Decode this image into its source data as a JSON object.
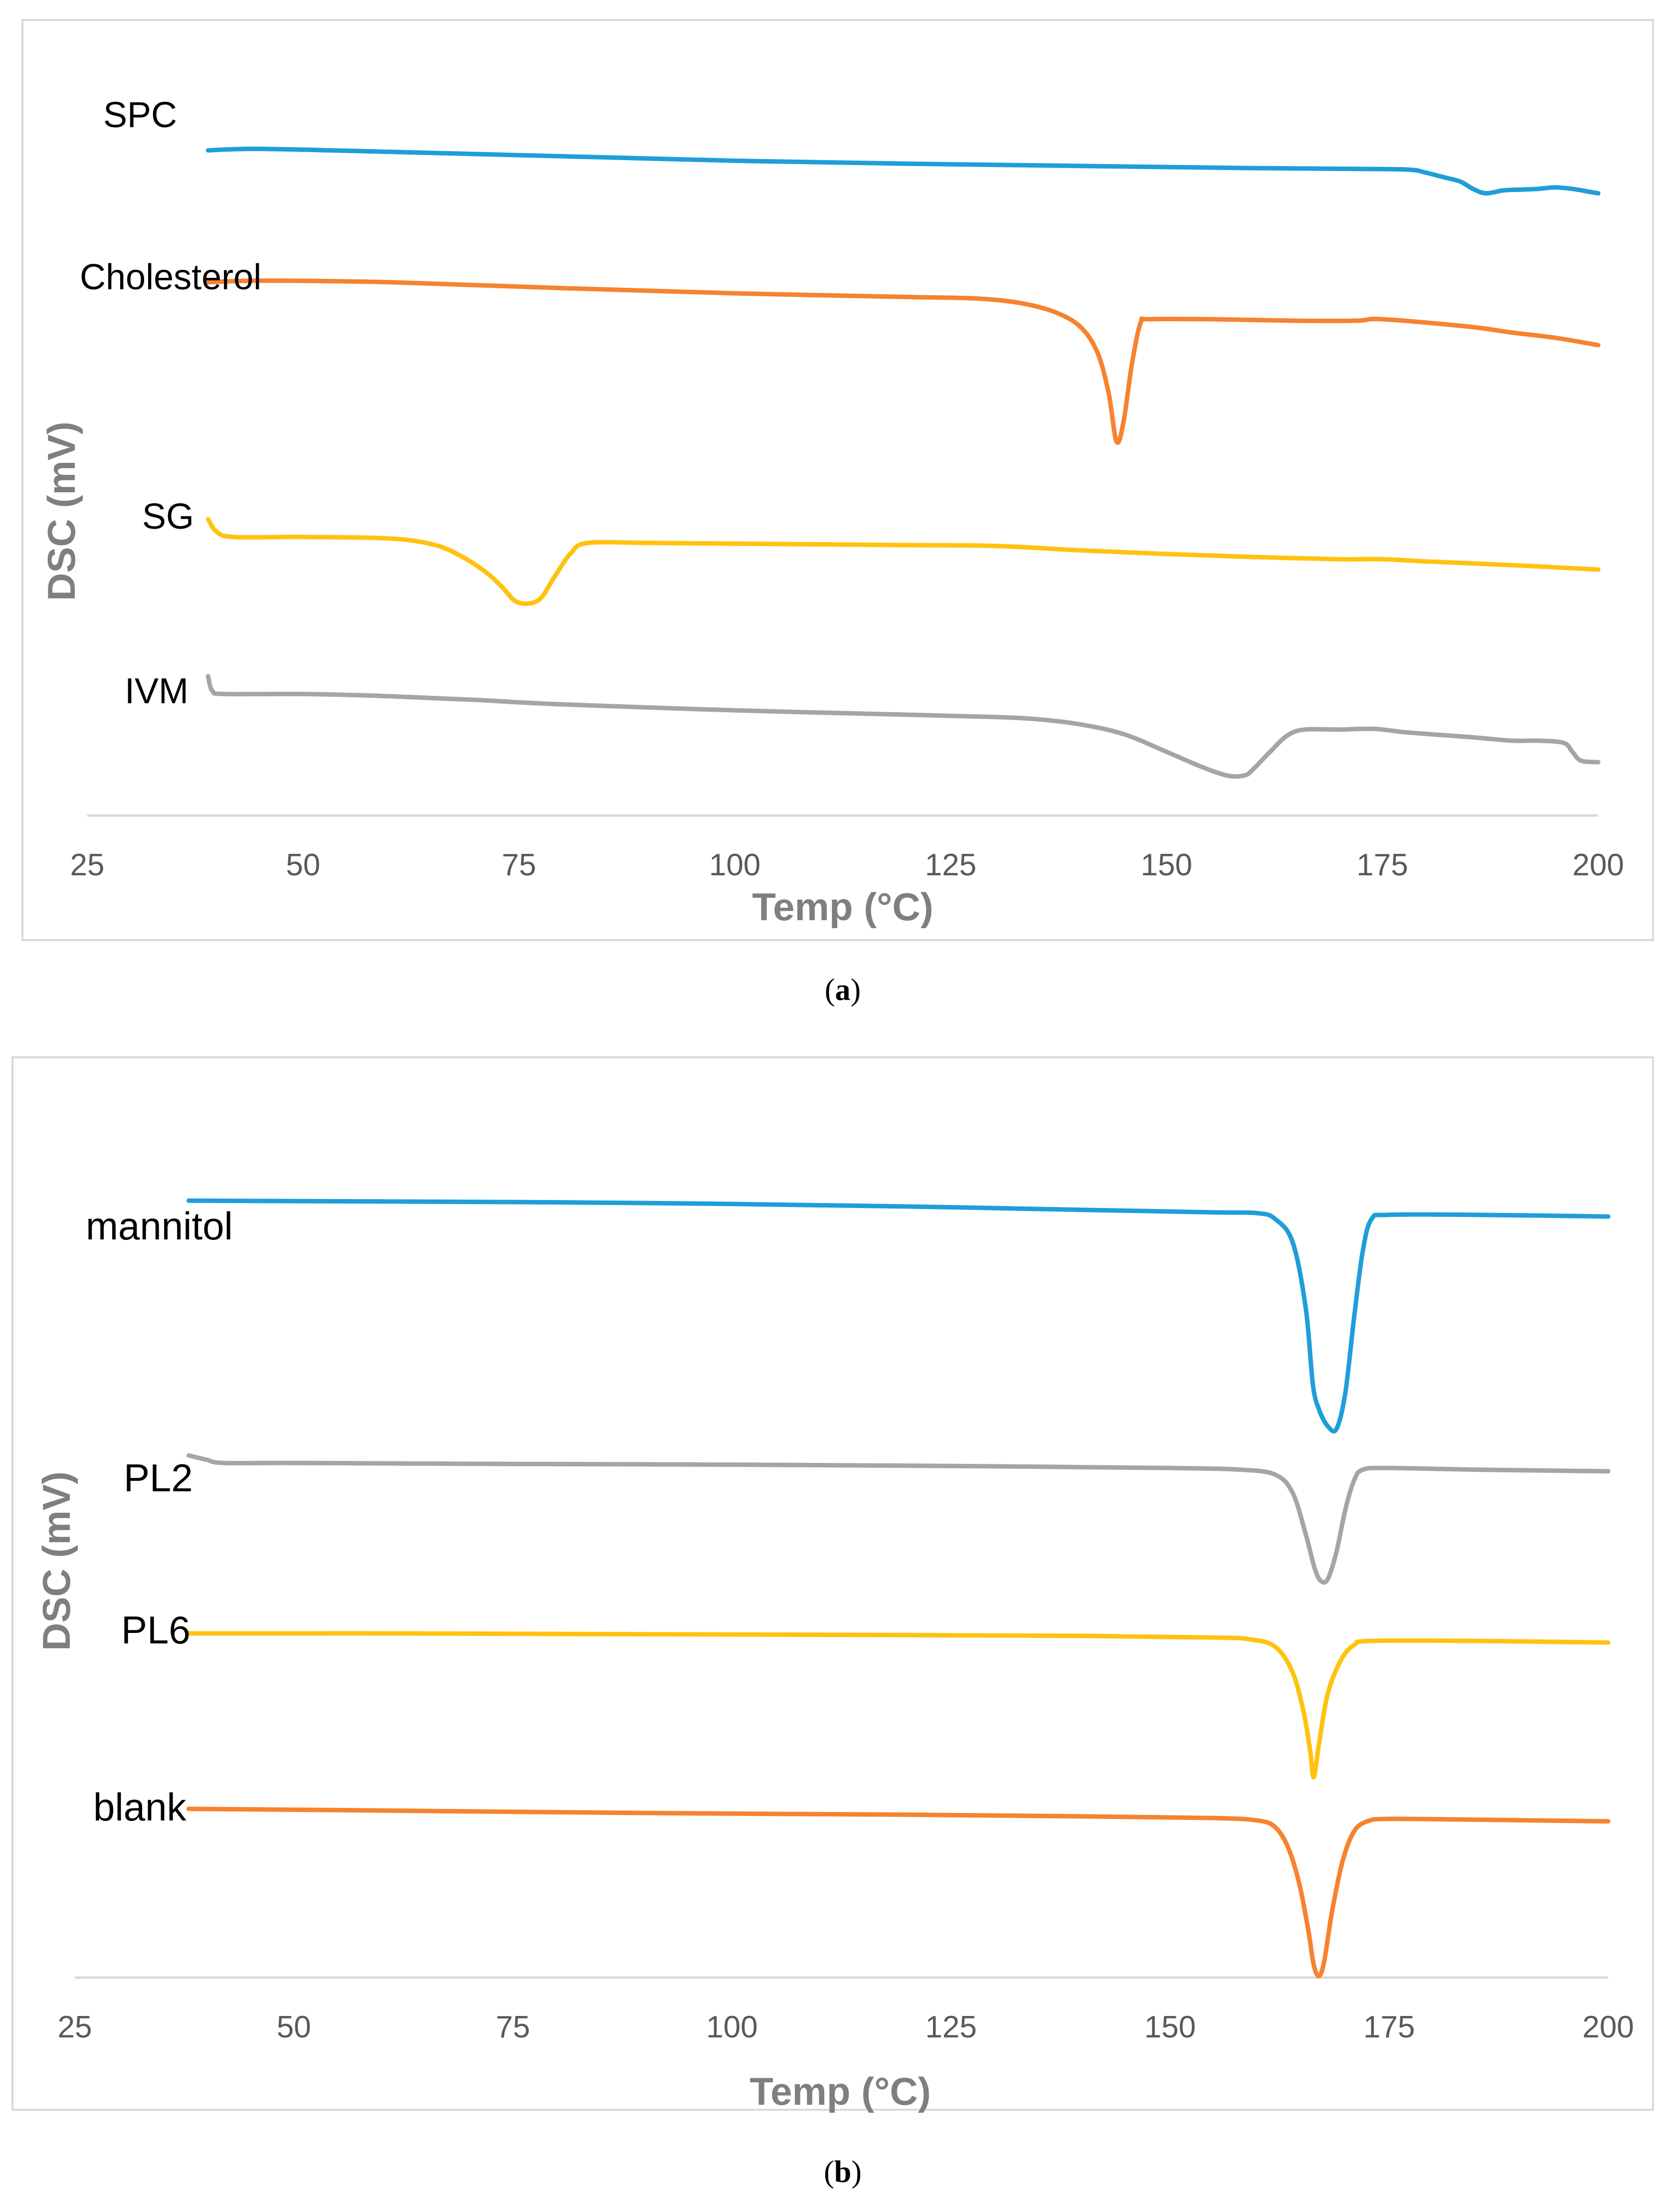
{
  "chart_data": [
    {
      "type": "line",
      "panel": "a",
      "caption": "(a)",
      "caption_letter": "a",
      "xlabel": "Temp (°C)",
      "ylabel": "DSC (mV)",
      "xlim": [
        25,
        200
      ],
      "ylim": [
        0,
        100
      ],
      "xticks": [
        "25",
        "50",
        "75",
        "100",
        "125",
        "150",
        "175",
        "200"
      ],
      "xtick_values": [
        25,
        50,
        75,
        100,
        125,
        150,
        175,
        200
      ],
      "colors": {
        "blue": "#1F9ED8",
        "orange": "#F7822F",
        "yellow": "#FFC20E",
        "gray": "#A5A5A5"
      },
      "series": [
        {
          "name": "SPC",
          "label": "SPC",
          "color": "#1F9ED8",
          "points": [
            [
              39,
              89.8
            ],
            [
              45,
              90
            ],
            [
              60,
              89.6
            ],
            [
              80,
              89
            ],
            [
              100,
              88.4
            ],
            [
              120,
              88
            ],
            [
              140,
              87.7
            ],
            [
              160,
              87.4
            ],
            [
              172,
              87.3
            ],
            [
              178,
              87.2
            ],
            [
              180,
              86.8
            ],
            [
              182,
              86.2
            ],
            [
              184,
              85.6
            ],
            [
              185.5,
              84.6
            ],
            [
              187,
              84
            ],
            [
              189,
              84.4
            ],
            [
              191,
              84.5
            ],
            [
              193,
              84.6
            ],
            [
              195,
              84.8
            ],
            [
              197,
              84.6
            ],
            [
              199,
              84.2
            ],
            [
              200,
              84
            ]
          ]
        },
        {
          "name": "Cholesterol",
          "label": "Cholesterol",
          "color": "#F7822F",
          "points": [
            [
              39,
              72
            ],
            [
              45,
              72.2
            ],
            [
              60,
              72
            ],
            [
              80,
              71.2
            ],
            [
              100,
              70.5
            ],
            [
              120,
              70
            ],
            [
              128,
              69.8
            ],
            [
              133,
              69.2
            ],
            [
              137,
              68
            ],
            [
              140,
              66
            ],
            [
              142,
              62.5
            ],
            [
              143.3,
              57
            ],
            [
              144.2,
              50.5
            ],
            [
              145,
              53
            ],
            [
              146,
              61
            ],
            [
              147,
              66.5
            ],
            [
              148,
              67
            ],
            [
              155,
              67
            ],
            [
              165,
              66.8
            ],
            [
              172,
              66.8
            ],
            [
              175,
              67
            ],
            [
              185,
              66
            ],
            [
              190,
              65.2
            ],
            [
              195,
              64.5
            ],
            [
              200,
              63.5
            ]
          ]
        },
        {
          "name": "SG",
          "label": "SG",
          "color": "#FFC20E",
          "points": [
            [
              39,
              40
            ],
            [
              40,
              38.3
            ],
            [
              42,
              37.6
            ],
            [
              50,
              37.6
            ],
            [
              60,
              37.4
            ],
            [
              65,
              36.6
            ],
            [
              68,
              35.2
            ],
            [
              71,
              33
            ],
            [
              73,
              30.9
            ],
            [
              74.5,
              29
            ],
            [
              76,
              28.6
            ],
            [
              77.5,
              29.3
            ],
            [
              79,
              32
            ],
            [
              81,
              35.4
            ],
            [
              83,
              36.8
            ],
            [
              90,
              36.8
            ],
            [
              100,
              36.7
            ],
            [
              120,
              36.5
            ],
            [
              130,
              36.4
            ],
            [
              140,
              35.8
            ],
            [
              150,
              35.3
            ],
            [
              160,
              34.9
            ],
            [
              170,
              34.6
            ],
            [
              175,
              34.6
            ],
            [
              180,
              34.3
            ],
            [
              190,
              33.8
            ],
            [
              200,
              33.2
            ]
          ]
        },
        {
          "name": "IVM",
          "label": "IVM",
          "color": "#A5A5A5",
          "points": [
            [
              39,
              18.8
            ],
            [
              39.5,
              16.8
            ],
            [
              41,
              16.4
            ],
            [
              50,
              16.4
            ],
            [
              60,
              16.1
            ],
            [
              70,
              15.6
            ],
            [
              80,
              15
            ],
            [
              100,
              14.2
            ],
            [
              120,
              13.6
            ],
            [
              130,
              13.3
            ],
            [
              135,
              13
            ],
            [
              140,
              12.3
            ],
            [
              145,
              11
            ],
            [
              150,
              8.6
            ],
            [
              154,
              6.6
            ],
            [
              157,
              5.4
            ],
            [
              159,
              5.4
            ],
            [
              160,
              6.2
            ],
            [
              162,
              8.6
            ],
            [
              164,
              10.8
            ],
            [
              166,
              11.6
            ],
            [
              170,
              11.6
            ],
            [
              174,
              11.7
            ],
            [
              178,
              11.2
            ],
            [
              185,
              10.6
            ],
            [
              190,
              10.1
            ],
            [
              193,
              10.1
            ],
            [
              196,
              9.8
            ],
            [
              197,
              8.6
            ],
            [
              198,
              7.4
            ],
            [
              200,
              7.2
            ]
          ]
        }
      ]
    },
    {
      "type": "line",
      "panel": "b",
      "caption": "(b)",
      "caption_letter": "b",
      "xlabel": "Temp (°C)",
      "ylabel": "DSC (mV)",
      "xlim": [
        25,
        200
      ],
      "ylim": [
        0,
        100
      ],
      "xticks": [
        "25",
        "50",
        "75",
        "100",
        "125",
        "150",
        "175",
        "200"
      ],
      "xtick_values": [
        25,
        50,
        75,
        100,
        125,
        150,
        175,
        200
      ],
      "colors": {
        "blue": "#1F9ED8",
        "orange": "#F7822F",
        "yellow": "#FFC20E",
        "gray": "#A5A5A5"
      },
      "series": [
        {
          "name": "mannitol",
          "label": "mannitol",
          "color": "#1F9ED8",
          "points": [
            [
              38,
              93
            ],
            [
              60,
              92.9
            ],
            [
              80,
              92.8
            ],
            [
              100,
              92.6
            ],
            [
              120,
              92.3
            ],
            [
              140,
              91.9
            ],
            [
              155,
              91.6
            ],
            [
              160,
              91.5
            ],
            [
              162,
              90.8
            ],
            [
              164,
              88
            ],
            [
              165.5,
              80
            ],
            [
              166.3,
              71
            ],
            [
              167,
              68
            ],
            [
              168,
              66
            ],
            [
              169,
              65.7
            ],
            [
              170,
              70
            ],
            [
              171,
              79
            ],
            [
              172,
              87
            ],
            [
              173,
              90.8
            ],
            [
              175,
              91.3
            ],
            [
              185,
              91.3
            ],
            [
              200,
              91.1
            ]
          ]
        },
        {
          "name": "PL2",
          "label": "PL2",
          "color": "#A5A5A5",
          "points": [
            [
              38,
              62.5
            ],
            [
              40,
              62
            ],
            [
              42,
              61.6
            ],
            [
              50,
              61.6
            ],
            [
              70,
              61.5
            ],
            [
              100,
              61.4
            ],
            [
              130,
              61.2
            ],
            [
              150,
              61
            ],
            [
              158,
              60.8
            ],
            [
              162,
              60.2
            ],
            [
              164,
              58
            ],
            [
              165.5,
              53
            ],
            [
              166.5,
              49
            ],
            [
              167.2,
              47.5
            ],
            [
              168,
              47.7
            ],
            [
              169,
              51
            ],
            [
              170,
              56
            ],
            [
              171,
              59.5
            ],
            [
              172,
              60.8
            ],
            [
              175,
              61
            ],
            [
              185,
              60.8
            ],
            [
              200,
              60.6
            ]
          ]
        },
        {
          "name": "PL6",
          "label": "PL6",
          "color": "#FFC20E",
          "points": [
            [
              38,
              41.2
            ],
            [
              60,
              41.2
            ],
            [
              90,
              41.1
            ],
            [
              120,
              41
            ],
            [
              140,
              40.9
            ],
            [
              155,
              40.7
            ],
            [
              159,
              40.5
            ],
            [
              162,
              39.6
            ],
            [
              164,
              36.5
            ],
            [
              165.3,
              31.5
            ],
            [
              166,
              27
            ],
            [
              166.4,
              24
            ],
            [
              167,
              28
            ],
            [
              168,
              34
            ],
            [
              169.5,
              38
            ],
            [
              171,
              39.8
            ],
            [
              173,
              40.3
            ],
            [
              185,
              40.3
            ],
            [
              200,
              40.1
            ]
          ]
        },
        {
          "name": "blank",
          "label": "blank",
          "color": "#F7822F",
          "points": [
            [
              38,
              20.2
            ],
            [
              60,
              20
            ],
            [
              90,
              19.7
            ],
            [
              120,
              19.5
            ],
            [
              140,
              19.3
            ],
            [
              155,
              19.1
            ],
            [
              160,
              18.8
            ],
            [
              162,
              18
            ],
            [
              163.5,
              15.5
            ],
            [
              164.8,
              11
            ],
            [
              165.8,
              5.5
            ],
            [
              166.4,
              1.5
            ],
            [
              167,
              0.2
            ],
            [
              167.6,
              2
            ],
            [
              168.5,
              8
            ],
            [
              169.7,
              14
            ],
            [
              171,
              17.5
            ],
            [
              172.5,
              18.7
            ],
            [
              175,
              19
            ],
            [
              185,
              18.9
            ],
            [
              200,
              18.7
            ]
          ]
        }
      ]
    }
  ]
}
